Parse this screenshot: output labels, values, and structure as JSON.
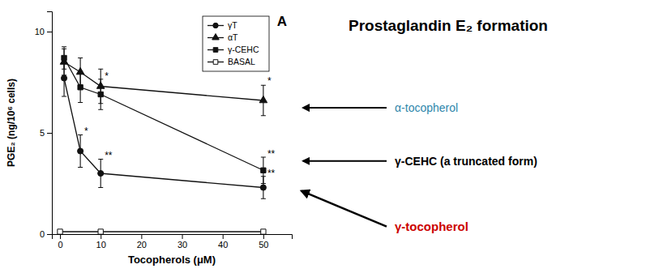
{
  "chart_data": {
    "type": "line",
    "title": "Prostaglandin E₂ formation",
    "x_label": "Tocopherols (μM)",
    "y_label": "PGE₂ (ng/10⁶ cells)",
    "panel_label": "A",
    "xlim": [
      -2,
      57
    ],
    "ylim": [
      0,
      11
    ],
    "xticks": [
      0,
      10,
      20,
      30,
      40,
      50
    ],
    "yticks": [
      0,
      5,
      10
    ],
    "grid": false,
    "legend": "upper right",
    "series": [
      {
        "name": "γT",
        "color": "#111111",
        "marker": "circle",
        "line_style": "solid",
        "x": [
          1,
          5,
          10,
          50
        ],
        "values": [
          7.7,
          4.1,
          3.0,
          2.3
        ],
        "errors": [
          0.9,
          0.8,
          0.7,
          0.55
        ]
      },
      {
        "name": "αT",
        "color": "#111111",
        "marker": "triangle",
        "line_style": "solid",
        "x": [
          1,
          5,
          10,
          50
        ],
        "values": [
          8.5,
          8.0,
          7.3,
          6.6
        ],
        "errors": [
          0.65,
          0.7,
          0.85,
          0.75
        ]
      },
      {
        "name": "γ-CEHC",
        "color": "#111111",
        "marker": "square",
        "line_style": "solid",
        "x": [
          1,
          5,
          10,
          50
        ],
        "values": [
          8.7,
          7.25,
          6.9,
          3.15
        ],
        "errors": [
          0.55,
          0.75,
          0.75,
          0.65
        ]
      },
      {
        "name": "BASAL",
        "color": "#111111",
        "marker": "open-square",
        "line_style": "solid",
        "x": [
          0,
          10,
          50
        ],
        "values": [
          0.12,
          0.12,
          0.12
        ],
        "errors": [
          0.04,
          0.04,
          0.04
        ]
      }
    ],
    "annotations": [
      {
        "x": 5,
        "y": 5.1,
        "text": "*"
      },
      {
        "x": 10,
        "y": 3.9,
        "text": "**"
      },
      {
        "x": 10,
        "y": 7.8,
        "text": "*"
      },
      {
        "x": 50,
        "y": 7.55,
        "text": "*"
      },
      {
        "x": 50,
        "y": 3.95,
        "text": "**"
      },
      {
        "x": 50,
        "y": 3.0,
        "text": "**"
      },
      {
        "text": "α-tocopherol",
        "color": "#2e86ab"
      },
      {
        "text": "γ-CEHC (a truncated form)",
        "color": "#000000"
      },
      {
        "text": "γ-tocopherol",
        "color": "#cc0000"
      }
    ]
  }
}
